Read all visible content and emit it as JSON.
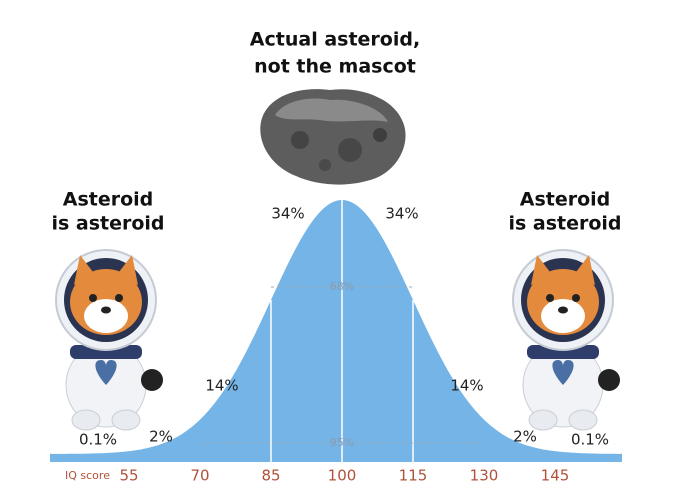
{
  "header": {
    "title_lines": [
      "Actual asteroid,",
      "not the mascot"
    ]
  },
  "left_label": {
    "lines": [
      "Asteroid",
      "is asteroid"
    ]
  },
  "right_label": {
    "lines": [
      "Asteroid",
      "is asteroid"
    ]
  },
  "regions": [
    "0.1%",
    "2%",
    "14%",
    "34%",
    "34%",
    "14%",
    "2%",
    "0.1%"
  ],
  "bands": [
    "68%",
    "95%"
  ],
  "axis": {
    "label": "IQ score",
    "ticks": [
      55,
      70,
      85,
      100,
      115,
      130,
      145
    ]
  }
}
